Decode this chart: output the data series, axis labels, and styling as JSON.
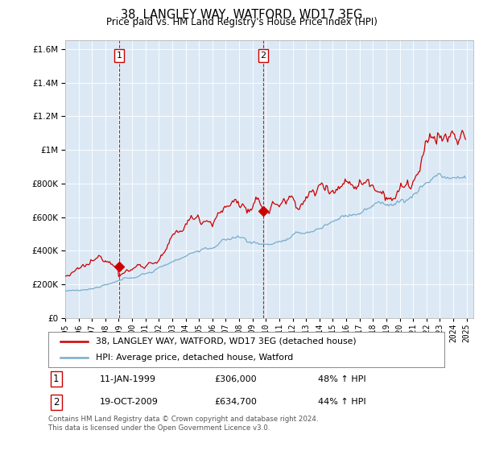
{
  "title": "38, LANGLEY WAY, WATFORD, WD17 3EG",
  "subtitle": "Price paid vs. HM Land Registry's House Price Index (HPI)",
  "legend_line1": "38, LANGLEY WAY, WATFORD, WD17 3EG (detached house)",
  "legend_line2": "HPI: Average price, detached house, Watford",
  "annotation1_date": "11-JAN-1999",
  "annotation1_price": "£306,000",
  "annotation1_hpi": "48% ↑ HPI",
  "annotation2_date": "19-OCT-2009",
  "annotation2_price": "£634,700",
  "annotation2_hpi": "44% ↑ HPI",
  "footer": "Contains HM Land Registry data © Crown copyright and database right 2024.\nThis data is licensed under the Open Government Licence v3.0.",
  "red_color": "#cc0000",
  "blue_color": "#7aadcc",
  "plot_bg_color": "#dce9f5",
  "marker1_x": 1999.04,
  "marker1_y": 306000,
  "marker2_x": 2009.8,
  "marker2_y": 634700,
  "vline1_x": 1999.04,
  "vline2_x": 2009.8,
  "ylim_max": 1650000,
  "ylim_min": 0,
  "xlim_min": 1995.0,
  "xlim_max": 2025.5,
  "yticks": [
    0,
    200000,
    400000,
    600000,
    800000,
    1000000,
    1200000,
    1400000,
    1600000
  ],
  "ytick_labels": [
    "£0",
    "£200K",
    "£400K",
    "£600K",
    "£800K",
    "£1M",
    "£1.2M",
    "£1.4M",
    "£1.6M"
  ]
}
